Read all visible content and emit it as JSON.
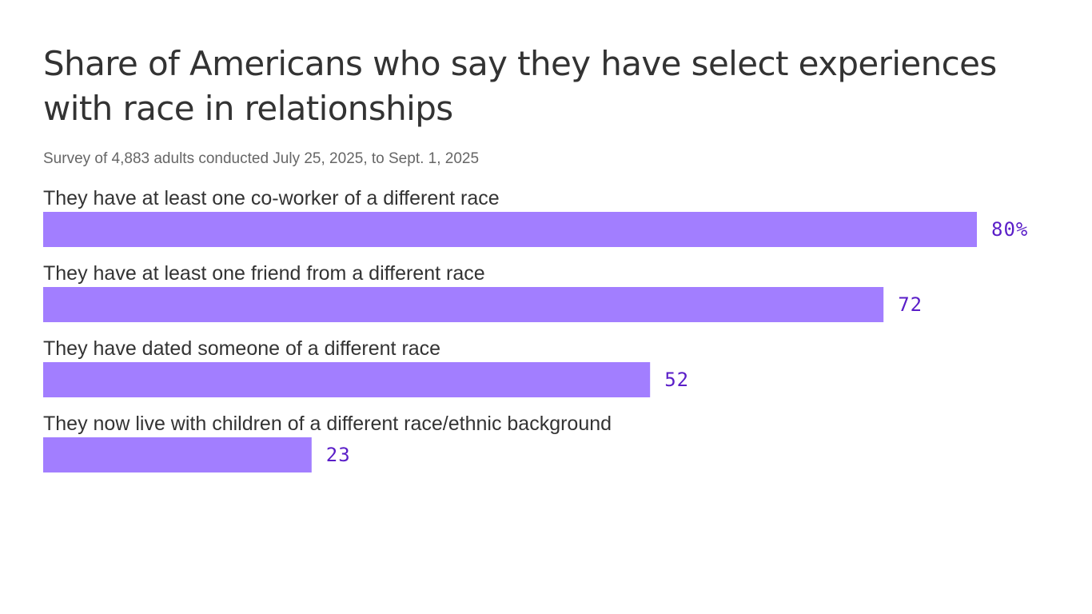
{
  "colors": {
    "bar": "#a27eff",
    "value_text": "#5a1ec8",
    "title_text": "#333333",
    "subtitle_text": "#666666"
  },
  "chart_data": {
    "type": "bar",
    "orientation": "horizontal",
    "title": "Share of Americans who say they have select experiences with race in relationships",
    "subtitle": "Survey of 4,883 adults conducted July 25, 2025, to Sept. 1, 2025",
    "categories": [
      "They have at least one co-worker of a different race",
      "They have at least one friend from a different race",
      "They have dated someone of a different race",
      "They now live with children of a different race/ethnic background"
    ],
    "values": [
      80,
      72,
      52,
      23
    ],
    "value_labels": [
      "80%",
      "72",
      "52",
      "23"
    ],
    "unit": "%",
    "xlim": [
      0,
      80
    ],
    "grid": false,
    "legend": "none"
  }
}
